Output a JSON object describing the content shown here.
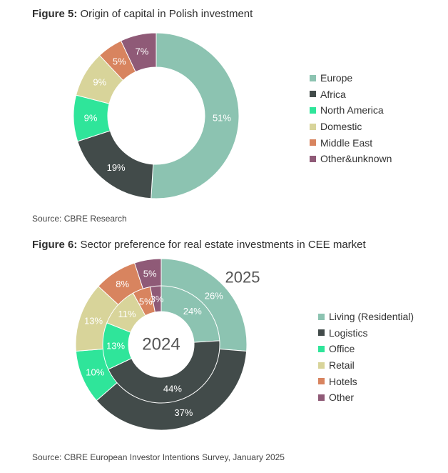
{
  "figure5": {
    "title_prefix": "Figure 5:",
    "title_text": "Origin of capital in Polish investment",
    "source": "Source: CBRE Research"
  },
  "figure6": {
    "title_prefix": "Figure 6:",
    "title_text": "Sector preference for real estate investments in CEE market",
    "source": "Source: CBRE European Investor Intentions Survey, January 2025",
    "outer_year": "2025",
    "inner_year": "2024"
  },
  "chart_data": [
    {
      "type": "pie",
      "variant": "donut",
      "title": "Origin of capital in Polish investment",
      "categories": [
        "Europe",
        "Africa",
        "North America",
        "Domestic",
        "Middle East",
        "Other&unknown"
      ],
      "values": [
        51,
        19,
        9,
        9,
        5,
        7
      ],
      "labels": [
        "51%",
        "19%",
        "9%",
        "9%",
        "5%",
        "7%"
      ],
      "colors": [
        "#8cc3b1",
        "#424b4a",
        "#2fe59a",
        "#d8d49a",
        "#d8845f",
        "#8f5a77"
      ],
      "legend": "right"
    },
    {
      "type": "pie",
      "variant": "nested-donut",
      "title": "Sector preference for real estate investments in CEE market",
      "categories": [
        "Living (Residential)",
        "Logistics",
        "Office",
        "Retail",
        "Hotels",
        "Other"
      ],
      "colors": [
        "#8cc3b1",
        "#424b4a",
        "#2fe59a",
        "#d8d49a",
        "#d8845f",
        "#8f5a77"
      ],
      "series": [
        {
          "name": "2025",
          "ring": "outer",
          "values": [
            26,
            37,
            10,
            13,
            8,
            5
          ],
          "labels": [
            "26%",
            "37%",
            "10%",
            "13%",
            "8%",
            "5%"
          ]
        },
        {
          "name": "2024",
          "ring": "inner",
          "values": [
            24,
            44,
            13,
            11,
            5,
            3
          ],
          "labels": [
            "24%",
            "44%",
            "13%",
            "11%",
            "5%",
            "3%"
          ]
        }
      ],
      "legend": "right"
    }
  ]
}
